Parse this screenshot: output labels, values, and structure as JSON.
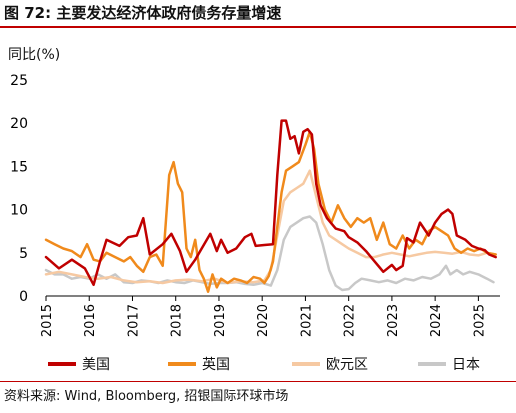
{
  "header": {
    "title": "图 72: 主要发达经济体政府债务存量增速"
  },
  "footer": {
    "source": "资料来源: Wind, Bloomberg, 招银国际环球市场"
  },
  "chart_data": {
    "type": "line",
    "title": "图 72: 主要发达经济体政府债务存量增速",
    "ylabel": "同比(%)",
    "xlabel": "",
    "ylim": [
      0,
      25
    ],
    "yticks": [
      0,
      5,
      10,
      15,
      20,
      25
    ],
    "xlim": [
      2015.0,
      2025.5
    ],
    "xticks": [
      "2015",
      "2016",
      "2017",
      "2018",
      "2019",
      "2020",
      "2021",
      "2022",
      "2023",
      "2024",
      "2025"
    ],
    "grid": false,
    "legend_position": "bottom",
    "series": [
      {
        "name": "美国",
        "color": "#c00000",
        "points": [
          [
            2015.0,
            4.5
          ],
          [
            2015.3,
            3.2
          ],
          [
            2015.6,
            4.2
          ],
          [
            2015.9,
            3.2
          ],
          [
            2016.1,
            1.3
          ],
          [
            2016.25,
            4.0
          ],
          [
            2016.4,
            6.5
          ],
          [
            2016.7,
            5.8
          ],
          [
            2016.9,
            6.8
          ],
          [
            2017.1,
            7.0
          ],
          [
            2017.25,
            9.0
          ],
          [
            2017.4,
            4.8
          ],
          [
            2017.7,
            6.0
          ],
          [
            2017.9,
            7.2
          ],
          [
            2018.1,
            5.2
          ],
          [
            2018.25,
            2.8
          ],
          [
            2018.45,
            4.2
          ],
          [
            2018.6,
            5.5
          ],
          [
            2018.8,
            7.2
          ],
          [
            2018.95,
            5.2
          ],
          [
            2019.05,
            6.5
          ],
          [
            2019.2,
            5.0
          ],
          [
            2019.4,
            5.5
          ],
          [
            2019.6,
            6.8
          ],
          [
            2019.75,
            7.2
          ],
          [
            2019.85,
            5.8
          ],
          [
            2020.05,
            5.9
          ],
          [
            2020.25,
            6.0
          ],
          [
            2020.35,
            14.0
          ],
          [
            2020.45,
            20.3
          ],
          [
            2020.55,
            20.3
          ],
          [
            2020.65,
            18.2
          ],
          [
            2020.75,
            18.5
          ],
          [
            2020.85,
            16.5
          ],
          [
            2020.95,
            19.0
          ],
          [
            2021.05,
            19.3
          ],
          [
            2021.15,
            18.7
          ],
          [
            2021.25,
            13.0
          ],
          [
            2021.35,
            10.5
          ],
          [
            2021.5,
            9.0
          ],
          [
            2021.7,
            7.8
          ],
          [
            2021.9,
            7.5
          ],
          [
            2022.0,
            6.8
          ],
          [
            2022.2,
            6.2
          ],
          [
            2022.4,
            5.2
          ],
          [
            2022.6,
            4.0
          ],
          [
            2022.8,
            2.8
          ],
          [
            2023.0,
            3.6
          ],
          [
            2023.1,
            3.0
          ],
          [
            2023.25,
            3.5
          ],
          [
            2023.35,
            6.7
          ],
          [
            2023.5,
            6.2
          ],
          [
            2023.65,
            8.5
          ],
          [
            2023.85,
            7.0
          ],
          [
            2024.0,
            8.5
          ],
          [
            2024.15,
            9.5
          ],
          [
            2024.3,
            10.0
          ],
          [
            2024.4,
            9.5
          ],
          [
            2024.5,
            7.0
          ],
          [
            2024.7,
            6.5
          ],
          [
            2024.85,
            5.8
          ],
          [
            2025.0,
            5.5
          ],
          [
            2025.15,
            5.3
          ],
          [
            2025.25,
            4.8
          ],
          [
            2025.4,
            4.5
          ]
        ]
      },
      {
        "name": "英国",
        "color": "#f08a1c",
        "points": [
          [
            2015.0,
            6.5
          ],
          [
            2015.2,
            6.0
          ],
          [
            2015.4,
            5.5
          ],
          [
            2015.6,
            5.2
          ],
          [
            2015.8,
            4.5
          ],
          [
            2015.95,
            6.0
          ],
          [
            2016.1,
            4.2
          ],
          [
            2016.25,
            4.0
          ],
          [
            2016.4,
            5.0
          ],
          [
            2016.6,
            4.5
          ],
          [
            2016.8,
            4.0
          ],
          [
            2016.95,
            4.5
          ],
          [
            2017.1,
            3.5
          ],
          [
            2017.25,
            2.8
          ],
          [
            2017.4,
            4.5
          ],
          [
            2017.55,
            4.8
          ],
          [
            2017.7,
            3.5
          ],
          [
            2017.85,
            14.0
          ],
          [
            2017.95,
            15.5
          ],
          [
            2018.05,
            13.0
          ],
          [
            2018.15,
            12.0
          ],
          [
            2018.25,
            5.5
          ],
          [
            2018.35,
            4.5
          ],
          [
            2018.45,
            6.5
          ],
          [
            2018.55,
            3.0
          ],
          [
            2018.65,
            2.0
          ],
          [
            2018.75,
            0.5
          ],
          [
            2018.85,
            2.5
          ],
          [
            2018.95,
            1.0
          ],
          [
            2019.05,
            2.0
          ],
          [
            2019.2,
            1.5
          ],
          [
            2019.35,
            2.0
          ],
          [
            2019.5,
            1.8
          ],
          [
            2019.65,
            1.5
          ],
          [
            2019.8,
            2.2
          ],
          [
            2019.95,
            2.0
          ],
          [
            2020.05,
            1.5
          ],
          [
            2020.15,
            2.3
          ],
          [
            2020.25,
            4.0
          ],
          [
            2020.35,
            8.0
          ],
          [
            2020.45,
            12.0
          ],
          [
            2020.55,
            14.5
          ],
          [
            2020.7,
            15.0
          ],
          [
            2020.85,
            15.5
          ],
          [
            2021.0,
            17.5
          ],
          [
            2021.1,
            19.0
          ],
          [
            2021.2,
            17.0
          ],
          [
            2021.3,
            13.0
          ],
          [
            2021.45,
            10.0
          ],
          [
            2021.6,
            8.5
          ],
          [
            2021.75,
            10.5
          ],
          [
            2021.9,
            9.0
          ],
          [
            2022.05,
            8.0
          ],
          [
            2022.2,
            9.0
          ],
          [
            2022.35,
            8.5
          ],
          [
            2022.5,
            9.0
          ],
          [
            2022.65,
            6.5
          ],
          [
            2022.8,
            8.5
          ],
          [
            2022.95,
            6.0
          ],
          [
            2023.1,
            5.5
          ],
          [
            2023.25,
            7.0
          ],
          [
            2023.4,
            5.5
          ],
          [
            2023.55,
            6.5
          ],
          [
            2023.7,
            6.0
          ],
          [
            2023.85,
            7.5
          ],
          [
            2024.0,
            8.0
          ],
          [
            2024.15,
            7.5
          ],
          [
            2024.3,
            7.0
          ],
          [
            2024.45,
            5.5
          ],
          [
            2024.6,
            5.0
          ],
          [
            2024.75,
            5.5
          ],
          [
            2024.9,
            5.2
          ],
          [
            2025.05,
            5.5
          ],
          [
            2025.2,
            5.0
          ],
          [
            2025.4,
            4.8
          ]
        ]
      },
      {
        "name": "欧元区",
        "color": "#f6c9a2",
        "points": [
          [
            2015.0,
            2.5
          ],
          [
            2015.3,
            2.8
          ],
          [
            2015.6,
            2.5
          ],
          [
            2015.9,
            2.2
          ],
          [
            2016.2,
            2.0
          ],
          [
            2016.5,
            2.2
          ],
          [
            2016.8,
            1.8
          ],
          [
            2017.1,
            1.6
          ],
          [
            2017.4,
            1.7
          ],
          [
            2017.7,
            1.5
          ],
          [
            2018.0,
            1.8
          ],
          [
            2018.3,
            1.9
          ],
          [
            2018.6,
            1.7
          ],
          [
            2018.9,
            2.0
          ],
          [
            2019.2,
            1.5
          ],
          [
            2019.5,
            1.7
          ],
          [
            2019.8,
            1.6
          ],
          [
            2020.05,
            1.8
          ],
          [
            2020.2,
            3.0
          ],
          [
            2020.35,
            7.0
          ],
          [
            2020.5,
            11.0
          ],
          [
            2020.65,
            12.0
          ],
          [
            2020.8,
            12.5
          ],
          [
            2020.95,
            13.0
          ],
          [
            2021.1,
            14.5
          ],
          [
            2021.25,
            11.5
          ],
          [
            2021.4,
            8.5
          ],
          [
            2021.55,
            7.0
          ],
          [
            2021.7,
            6.5
          ],
          [
            2021.85,
            6.0
          ],
          [
            2022.0,
            5.5
          ],
          [
            2022.2,
            5.0
          ],
          [
            2022.4,
            4.5
          ],
          [
            2022.6,
            4.5
          ],
          [
            2022.8,
            4.8
          ],
          [
            2023.0,
            5.0
          ],
          [
            2023.2,
            4.8
          ],
          [
            2023.4,
            4.6
          ],
          [
            2023.6,
            4.8
          ],
          [
            2023.8,
            5.0
          ],
          [
            2024.0,
            5.1
          ],
          [
            2024.2,
            5.0
          ],
          [
            2024.4,
            4.9
          ],
          [
            2024.6,
            5.1
          ],
          [
            2024.8,
            4.8
          ],
          [
            2025.0,
            4.7
          ],
          [
            2025.2,
            5.0
          ],
          [
            2025.4,
            4.8
          ]
        ]
      },
      {
        "name": "日本",
        "color": "#c8c8c8",
        "points": [
          [
            2015.0,
            3.0
          ],
          [
            2015.2,
            2.5
          ],
          [
            2015.4,
            2.5
          ],
          [
            2015.6,
            2.0
          ],
          [
            2015.8,
            2.2
          ],
          [
            2016.0,
            2.0
          ],
          [
            2016.2,
            2.5
          ],
          [
            2016.4,
            2.0
          ],
          [
            2016.6,
            2.5
          ],
          [
            2016.8,
            1.6
          ],
          [
            2017.0,
            1.5
          ],
          [
            2017.2,
            1.8
          ],
          [
            2017.4,
            1.7
          ],
          [
            2017.6,
            1.5
          ],
          [
            2017.8,
            1.8
          ],
          [
            2018.0,
            1.6
          ],
          [
            2018.2,
            1.5
          ],
          [
            2018.4,
            1.8
          ],
          [
            2018.6,
            1.6
          ],
          [
            2018.8,
            1.4
          ],
          [
            2019.0,
            1.5
          ],
          [
            2019.2,
            1.5
          ],
          [
            2019.4,
            1.6
          ],
          [
            2019.6,
            1.4
          ],
          [
            2019.8,
            1.3
          ],
          [
            2020.0,
            1.5
          ],
          [
            2020.2,
            1.2
          ],
          [
            2020.35,
            3.0
          ],
          [
            2020.5,
            6.5
          ],
          [
            2020.65,
            8.0
          ],
          [
            2020.8,
            8.5
          ],
          [
            2020.95,
            9.0
          ],
          [
            2021.1,
            9.2
          ],
          [
            2021.25,
            8.5
          ],
          [
            2021.4,
            6.0
          ],
          [
            2021.55,
            3.0
          ],
          [
            2021.7,
            1.2
          ],
          [
            2021.85,
            0.7
          ],
          [
            2022.0,
            0.8
          ],
          [
            2022.15,
            1.5
          ],
          [
            2022.3,
            2.0
          ],
          [
            2022.5,
            1.8
          ],
          [
            2022.7,
            1.6
          ],
          [
            2022.9,
            1.8
          ],
          [
            2023.1,
            1.5
          ],
          [
            2023.3,
            2.0
          ],
          [
            2023.5,
            1.8
          ],
          [
            2023.7,
            2.2
          ],
          [
            2023.9,
            2.0
          ],
          [
            2024.1,
            2.5
          ],
          [
            2024.25,
            3.5
          ],
          [
            2024.35,
            2.5
          ],
          [
            2024.5,
            3.0
          ],
          [
            2024.65,
            2.5
          ],
          [
            2024.8,
            2.8
          ],
          [
            2025.0,
            2.5
          ],
          [
            2025.2,
            2.0
          ],
          [
            2025.35,
            1.6
          ]
        ]
      }
    ]
  }
}
